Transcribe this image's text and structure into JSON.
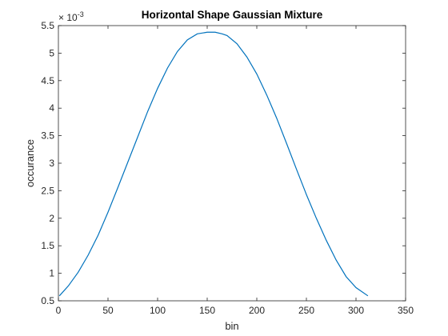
{
  "chart_data": {
    "type": "line",
    "title": "Horizontal Shape Gaussian Mixture",
    "xlabel": "bin",
    "ylabel": "occurance",
    "xlim": [
      0,
      350
    ],
    "ylim": [
      0.5,
      5.5
    ],
    "y_exponent_base": "× 10",
    "y_exponent_power": "-3",
    "x_ticks": [
      0,
      50,
      100,
      150,
      200,
      250,
      300,
      350
    ],
    "x_tick_labels": [
      "0",
      "50",
      "100",
      "150",
      "200",
      "250",
      "300",
      "350"
    ],
    "y_ticks": [
      0.5,
      1,
      1.5,
      2,
      2.5,
      3,
      3.5,
      4,
      4.5,
      5,
      5.5
    ],
    "y_tick_labels": [
      "0.5",
      "1",
      "1.5",
      "2",
      "2.5",
      "3",
      "3.5",
      "4",
      "4.5",
      "5",
      "5.5"
    ],
    "grid": false,
    "line_color": "#0072BD",
    "series": [
      {
        "x": [
          1,
          10,
          20,
          30,
          40,
          50,
          60,
          70,
          80,
          90,
          100,
          110,
          120,
          130,
          140,
          150,
          158,
          165,
          170,
          180,
          190,
          200,
          210,
          220,
          230,
          240,
          250,
          260,
          270,
          280,
          290,
          300,
          312
        ],
        "values": [
          0.59,
          0.77,
          1.02,
          1.33,
          1.69,
          2.11,
          2.56,
          3.02,
          3.48,
          3.94,
          4.36,
          4.73,
          5.03,
          5.24,
          5.35,
          5.38,
          5.38,
          5.35,
          5.32,
          5.17,
          4.93,
          4.62,
          4.24,
          3.82,
          3.36,
          2.89,
          2.43,
          2.0,
          1.6,
          1.24,
          0.94,
          0.74,
          0.59
        ]
      }
    ]
  }
}
